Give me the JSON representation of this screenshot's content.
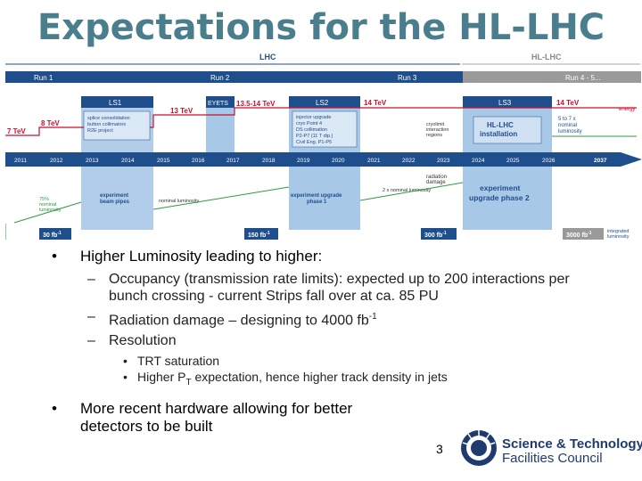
{
  "title": "Expectations for the HL-LHC",
  "timeline": {
    "era_lhc": "LHC",
    "era_hllhc": "HL-LHC",
    "runs": [
      "Run 1",
      "Run 2",
      "Run 3",
      "Run 4 - 5..."
    ],
    "shutdowns": [
      "LS1",
      "EYETS",
      "LS2",
      "LS3"
    ],
    "energies": [
      "7 TeV",
      "8 TeV",
      "13 TeV",
      "13.5-14 TeV",
      "14 TeV",
      "14 TeV"
    ],
    "energy_label": "energy",
    "years": [
      "2011",
      "2012",
      "2013",
      "2014",
      "2015",
      "2016",
      "2017",
      "2018",
      "2019",
      "2020",
      "2021",
      "2022",
      "2023",
      "2024",
      "2025",
      "2026",
      "2037"
    ],
    "ls1_box": "splice consolidation\nbutton collimators\nR2E project",
    "ls2_box": "injector upgrade\ncryo Point 4\nDS collimation\nP2-P7 (11 T dip.)\nCivil Eng. P1-P5",
    "crystal_note": "cryolimit\ninteraction\nregions",
    "hllhc_box": "HL-LHC\ninstallation",
    "lumi_note": "5 to 7 x\nnominal\nluminosity",
    "ls1_lower": "experiment\nbeam pipes",
    "nominal_lumi": "nominal luminosity",
    "ls2_lower": "experiment upgrade\nphase 1",
    "twice_nominal": "2 x nominal luminosity",
    "radiation_note": "radiation\ndamage",
    "ls3_lower": "experiment\nupgrade phase 2",
    "pct_note": "75%\nnominal\nluminosity",
    "lumi_marks": [
      "30 fb",
      "150 fb",
      "300 fb",
      "3000 fb"
    ],
    "lumi_sup": "-1",
    "integrated_label": "integrated\nluminosity"
  },
  "bullets": [
    {
      "text": "Higher Luminosity leading to higher:",
      "subs": [
        {
          "text": "Occupancy (transmission rate limits): expected up to 200 interactions per bunch crossing - current Strips fall over at ca. 85 PU"
        },
        {
          "text": "Radiation damage – designing to 4000 fb",
          "sup": "-1"
        },
        {
          "text": "Resolution",
          "subsubs": [
            {
              "text": "TRT saturation"
            },
            {
              "pre": "Higher P",
              "sub": "T",
              "post": " expectation, hence higher track density in jets"
            }
          ]
        }
      ]
    },
    {
      "text": "More recent hardware allowing for better detectors to be built"
    }
  ],
  "page_number": "3",
  "logo": {
    "line1": "Science & Technology",
    "line2": "Facilities Council"
  },
  "colors": {
    "title": "#4a7e8c",
    "run_bar": "#1f4e8c",
    "ls_fill": "#a8c8e8",
    "energy": "#c8102e",
    "hllhc_grey": "#9a9a9a",
    "lumi_green": "#2e9a3e"
  }
}
